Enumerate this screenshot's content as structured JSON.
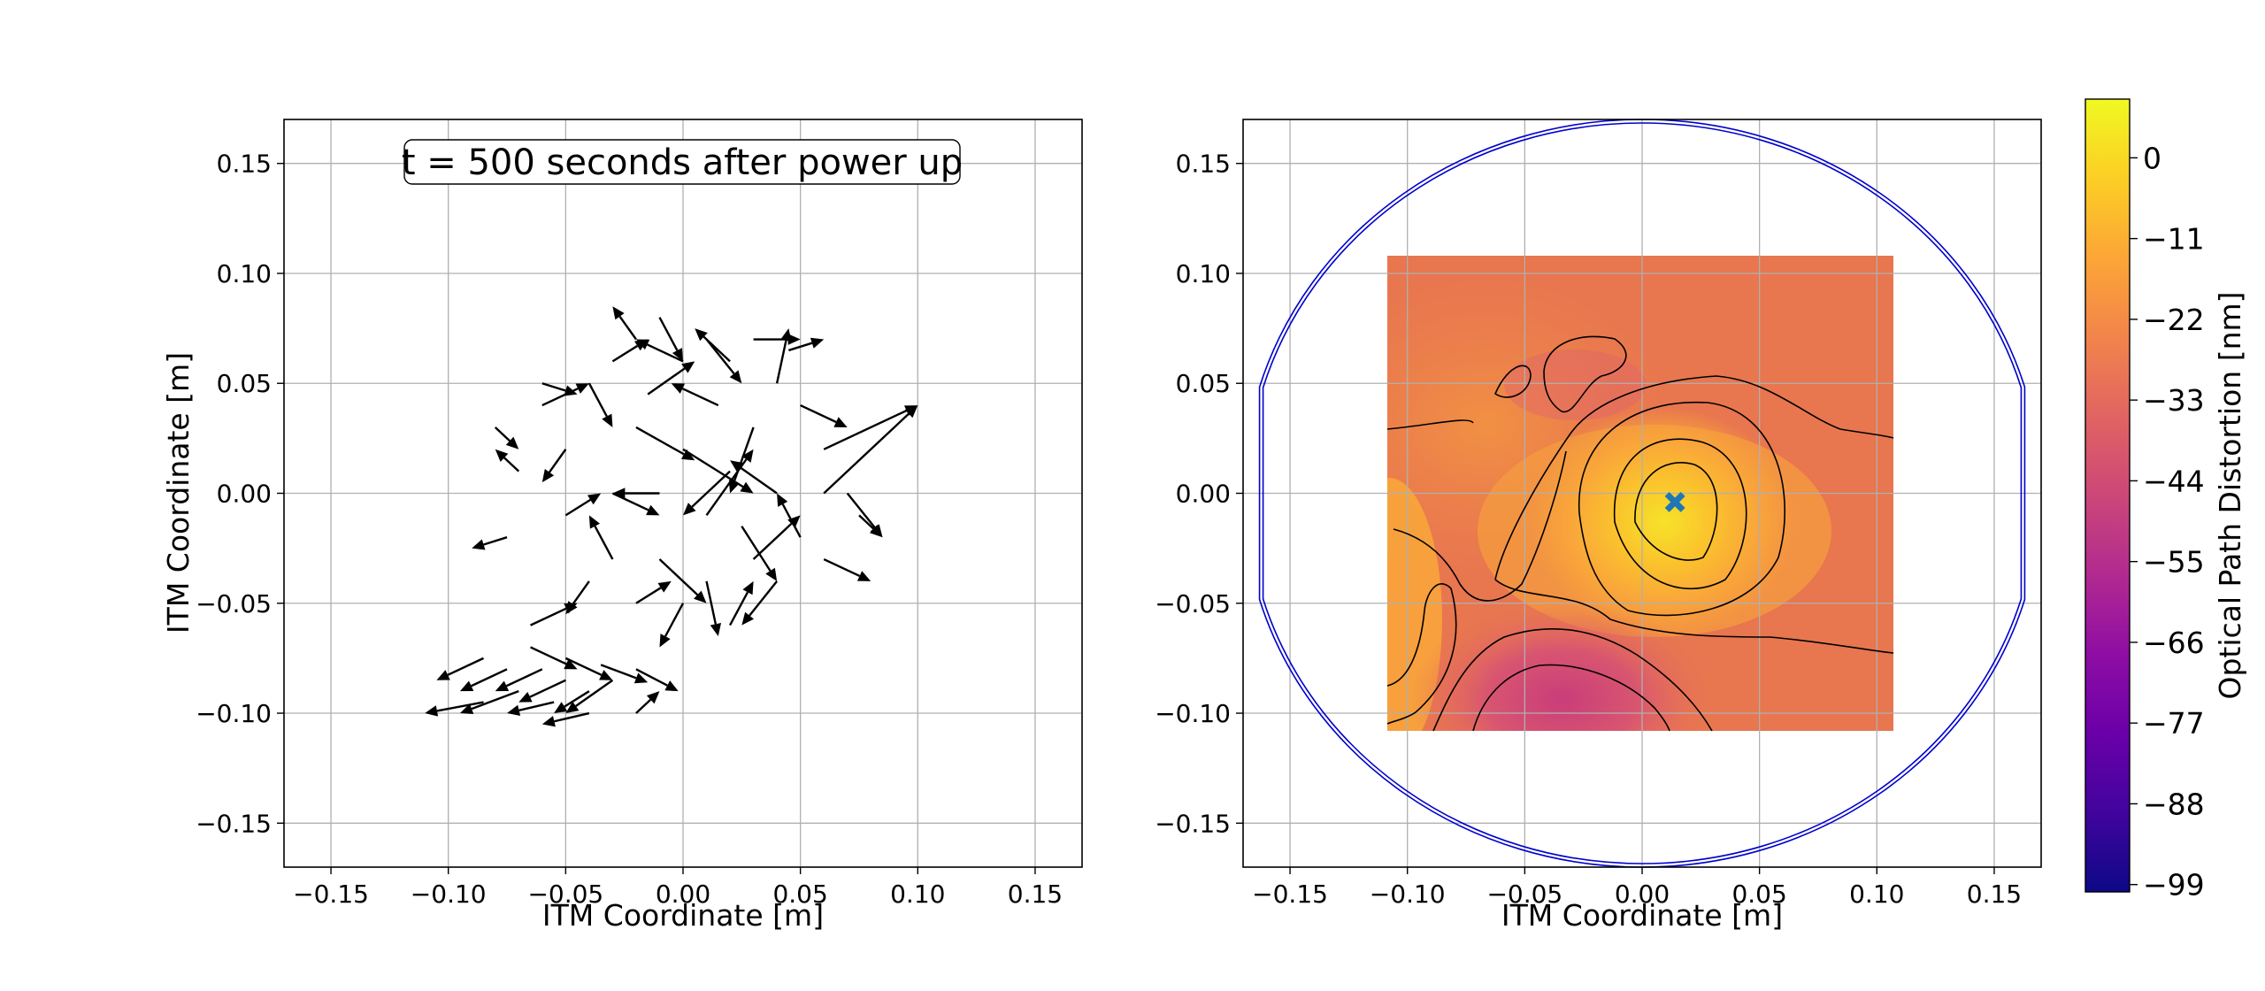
{
  "chart_data": [
    {
      "type": "quiver",
      "title": "",
      "annotation": "t = 500 seconds after power up",
      "xlabel": "ITM Coordinate [m]",
      "ylabel": "ITM Coordinate [m]",
      "xlim": [
        -0.17,
        0.17
      ],
      "ylim": [
        -0.17,
        0.17
      ],
      "xticks": [
        "−0.15",
        "−0.10",
        "−0.05",
        "0.00",
        "0.05",
        "0.10",
        "0.15"
      ],
      "yticks": [
        "−0.15",
        "−0.10",
        "−0.05",
        "0.00",
        "0.05",
        "0.10",
        "0.15"
      ],
      "grid": true,
      "arrows": [
        [
          -0.085,
          -0.075,
          -0.02,
          -0.01
        ],
        [
          -0.075,
          -0.08,
          -0.02,
          -0.01
        ],
        [
          -0.06,
          -0.08,
          -0.02,
          -0.01
        ],
        [
          -0.05,
          -0.085,
          -0.02,
          -0.01
        ],
        [
          -0.04,
          -0.09,
          -0.015,
          -0.01
        ],
        [
          -0.03,
          -0.085,
          -0.02,
          -0.015
        ],
        [
          -0.07,
          -0.09,
          -0.025,
          -0.01
        ],
        [
          -0.055,
          -0.095,
          -0.02,
          -0.005
        ],
        [
          -0.04,
          -0.1,
          -0.02,
          -0.005
        ],
        [
          -0.085,
          -0.095,
          -0.025,
          -0.005
        ],
        [
          -0.065,
          -0.07,
          0.02,
          -0.01
        ],
        [
          -0.05,
          -0.075,
          0.02,
          -0.01
        ],
        [
          -0.035,
          -0.078,
          0.02,
          -0.008
        ],
        [
          -0.02,
          -0.08,
          0.018,
          -0.01
        ],
        [
          -0.02,
          -0.1,
          0.01,
          0.01
        ],
        [
          -0.08,
          0.03,
          0.01,
          -0.01
        ],
        [
          -0.07,
          0.01,
          -0.01,
          0.01
        ],
        [
          -0.075,
          -0.02,
          -0.015,
          -0.005
        ],
        [
          -0.06,
          0.04,
          0.02,
          0.01
        ],
        [
          -0.05,
          0.02,
          -0.01,
          -0.015
        ],
        [
          -0.05,
          -0.01,
          0.015,
          0.01
        ],
        [
          -0.04,
          0.05,
          0.01,
          -0.02
        ],
        [
          -0.04,
          -0.04,
          -0.01,
          -0.015
        ],
        [
          -0.03,
          0.06,
          0.015,
          0.01
        ],
        [
          -0.03,
          0.0,
          0.02,
          -0.01
        ],
        [
          -0.03,
          -0.03,
          -0.01,
          0.02
        ],
        [
          -0.02,
          0.07,
          -0.01,
          0.015
        ],
        [
          -0.02,
          0.03,
          0.025,
          -0.015
        ],
        [
          -0.02,
          -0.05,
          0.015,
          0.01
        ],
        [
          -0.01,
          0.08,
          0.01,
          -0.02
        ],
        [
          -0.01,
          0.0,
          -0.02,
          0.0
        ],
        [
          -0.01,
          -0.03,
          0.02,
          -0.02
        ],
        [
          0.0,
          0.06,
          -0.02,
          0.01
        ],
        [
          0.0,
          0.02,
          0.03,
          -0.02
        ],
        [
          0.0,
          -0.05,
          -0.01,
          -0.02
        ],
        [
          0.01,
          0.07,
          0.015,
          -0.02
        ],
        [
          0.01,
          -0.01,
          0.02,
          0.03
        ],
        [
          0.01,
          -0.04,
          0.005,
          -0.025
        ],
        [
          0.02,
          0.06,
          -0.015,
          0.015
        ],
        [
          0.02,
          0.01,
          -0.02,
          -0.02
        ],
        [
          0.02,
          -0.06,
          0.01,
          0.02
        ],
        [
          0.03,
          0.07,
          0.02,
          0.0
        ],
        [
          0.03,
          0.03,
          -0.01,
          -0.03
        ],
        [
          0.03,
          -0.03,
          0.02,
          0.02
        ],
        [
          0.04,
          0.05,
          0.005,
          0.025
        ],
        [
          0.04,
          0.0,
          -0.02,
          0.015
        ],
        [
          0.04,
          -0.04,
          -0.015,
          -0.02
        ],
        [
          0.05,
          0.04,
          0.02,
          -0.01
        ],
        [
          0.05,
          -0.02,
          -0.01,
          0.02
        ],
        [
          0.06,
          0.02,
          0.04,
          0.02
        ],
        [
          0.06,
          -0.03,
          0.02,
          -0.01
        ],
        [
          0.07,
          0.0,
          0.015,
          -0.02
        ],
        [
          0.075,
          -0.01,
          0.01,
          -0.01
        ],
        [
          0.06,
          0.0,
          0.04,
          0.04
        ],
        [
          -0.065,
          -0.06,
          0.02,
          0.01
        ],
        [
          -0.06,
          0.05,
          0.015,
          -0.005
        ],
        [
          0.045,
          0.065,
          0.015,
          0.005
        ],
        [
          -0.015,
          0.045,
          0.02,
          0.015
        ],
        [
          0.015,
          0.04,
          -0.02,
          0.01
        ],
        [
          0.025,
          -0.015,
          0.015,
          -0.025
        ]
      ]
    },
    {
      "type": "heatmap",
      "title": "",
      "xlabel": "ITM Coordinate [m]",
      "ylabel": "",
      "xlim": [
        -0.17,
        0.17
      ],
      "ylim": [
        -0.17,
        0.17
      ],
      "xticks": [
        "−0.15",
        "−0.10",
        "−0.05",
        "0.00",
        "0.05",
        "0.10",
        "0.15"
      ],
      "yticks": [
        "−0.15",
        "−0.10",
        "−0.05",
        "0.00",
        "0.05",
        "0.10",
        "0.15"
      ],
      "grid": true,
      "extent": [
        -0.108,
        0.108,
        -0.108,
        0.108
      ],
      "marker": {
        "x": 0.014,
        "y": -0.004,
        "symbol": "X",
        "color": "#1f77b4"
      },
      "aperture_radius": 0.17,
      "aperture_color": "#0000cc",
      "colormap": "plasma",
      "colorbar": {
        "label": "Optical Path Distortion [nm]",
        "range": [
          -100,
          8
        ],
        "ticks": [
          "0",
          "−11",
          "−22",
          "−33",
          "−44",
          "−55",
          "−66",
          "−77",
          "−88",
          "−99"
        ]
      }
    }
  ]
}
